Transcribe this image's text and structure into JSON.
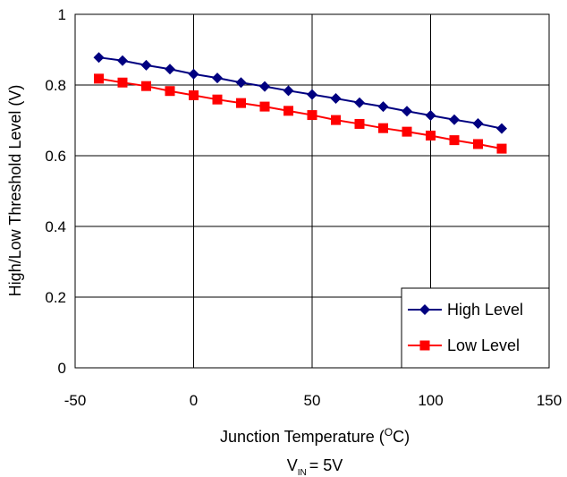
{
  "chart_data": {
    "type": "line",
    "xlabel": "Junction Temperature",
    "xlabel_unit_prefix": "O",
    "xlabel_unit_suffix": "C",
    "ylabel": "High/Low Threshold Level (V)",
    "condition": {
      "symbol": "V",
      "subscript": "IN",
      "value": "= 5V"
    },
    "xlim": [
      -50,
      150
    ],
    "ylim": [
      0,
      1
    ],
    "xticks": [
      -50,
      0,
      50,
      100,
      150
    ],
    "xtick_labels": [
      "-50",
      "0",
      "50",
      "100",
      "150"
    ],
    "yticks": [
      0,
      0.2,
      0.4,
      0.6,
      0.8,
      1
    ],
    "ytick_labels": [
      "0",
      "0.2",
      "0.4",
      "0.6",
      "0.8",
      "1"
    ],
    "grid": true,
    "legend_position": "bottom-right",
    "x": [
      -40,
      -30,
      -20,
      -10,
      0,
      10,
      20,
      30,
      40,
      50,
      60,
      70,
      80,
      90,
      100,
      110,
      120,
      130
    ],
    "series": [
      {
        "name": "High Level",
        "color": "#000080",
        "marker": "diamond",
        "values": [
          0.878,
          0.869,
          0.856,
          0.845,
          0.831,
          0.82,
          0.807,
          0.796,
          0.784,
          0.773,
          0.762,
          0.75,
          0.739,
          0.726,
          0.714,
          0.702,
          0.691,
          0.677
        ]
      },
      {
        "name": "Low Level",
        "color": "#ff0000",
        "marker": "square",
        "values": [
          0.818,
          0.807,
          0.797,
          0.783,
          0.771,
          0.759,
          0.749,
          0.739,
          0.727,
          0.715,
          0.701,
          0.69,
          0.678,
          0.668,
          0.657,
          0.644,
          0.633,
          0.62
        ]
      }
    ]
  }
}
